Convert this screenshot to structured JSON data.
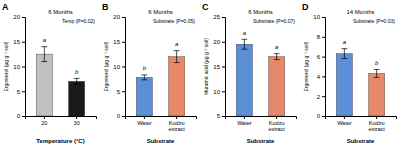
{
  "chart_data": [
    {
      "type": "bar",
      "panel_label": "A",
      "title": "6 Months",
      "annotation": "Temp (P=0.02)",
      "categories": [
        "20",
        "30"
      ],
      "xlabel": "Temperature (°C)",
      "ylabel": "Ergosterol (µg g⁻¹ soil)",
      "values": [
        12.5,
        7.0
      ],
      "errors": [
        1.5,
        0.6
      ],
      "colors": [
        "#c0c0c0",
        "#1a1a1a"
      ],
      "ylim": [
        0,
        20
      ],
      "yticks": [
        0,
        5,
        10,
        15,
        20
      ],
      "sig_labels": [
        "a",
        "b"
      ],
      "grid": false
    },
    {
      "type": "bar",
      "panel_label": "B",
      "title": "6 Months",
      "annotation": "Substrate (P=0.05)",
      "categories": [
        "Water",
        "Kudzu extract"
      ],
      "xlabel": "Substrate",
      "ylabel": "Ergosterol (µg g⁻¹ soil)",
      "values": [
        7.8,
        12.0
      ],
      "errors": [
        0.5,
        1.2
      ],
      "colors": [
        "#5b8fd6",
        "#e8886a"
      ],
      "ylim": [
        0,
        20
      ],
      "yticks": [
        0,
        5,
        10,
        15,
        20
      ],
      "sig_labels": [
        "b",
        "a"
      ],
      "grid": false
    },
    {
      "type": "bar",
      "panel_label": "C",
      "title": "6 Months",
      "annotation": "Substrate (P=0.07)",
      "categories": [
        "Water",
        "Kudzu extract"
      ],
      "xlabel": "Substrate",
      "ylabel": "Muramic acid (µg g⁻¹ soil)",
      "values": [
        19.5,
        17.0
      ],
      "errors": [
        1.0,
        0.6
      ],
      "colors": [
        "#5b8fd6",
        "#e8886a"
      ],
      "ylim": [
        5,
        25
      ],
      "yticks": [
        5,
        10,
        15,
        20,
        25
      ],
      "sig_labels": [
        "a",
        "a"
      ],
      "grid": false
    },
    {
      "type": "bar",
      "panel_label": "D",
      "title": "14 Months",
      "annotation": "Substrate (P=0.03)",
      "categories": [
        "Water",
        "Kudzu extract"
      ],
      "xlabel": "Substrate",
      "ylabel": "Ergosterol (µg g⁻¹ soil)",
      "values": [
        6.3,
        4.3
      ],
      "errors": [
        0.5,
        0.4
      ],
      "colors": [
        "#5b8fd6",
        "#e8886a"
      ],
      "ylim": [
        0,
        10
      ],
      "yticks": [
        0,
        2,
        4,
        6,
        8,
        10
      ],
      "sig_labels": [
        "a",
        "b"
      ],
      "grid": false
    }
  ]
}
